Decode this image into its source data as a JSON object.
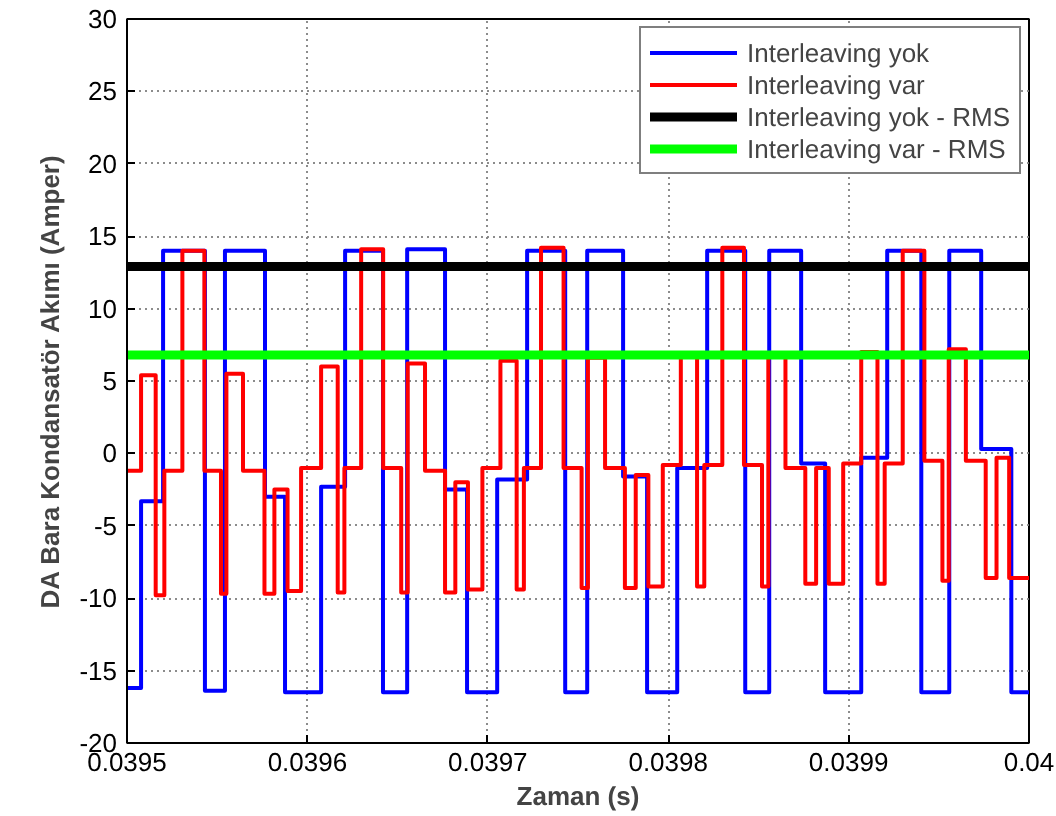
{
  "chart_data": {
    "type": "step",
    "xlabel": "Zaman (s)",
    "ylabel": "DA Bara Kondansatör Akımı (Amper)",
    "xlim": [
      0.0395,
      0.04
    ],
    "ylim": [
      -20,
      30
    ],
    "xticks": [
      0.0395,
      0.0396,
      0.0397,
      0.0398,
      0.0399,
      0.04
    ],
    "yticks": [
      -20,
      -15,
      -10,
      -5,
      0,
      5,
      10,
      15,
      20,
      25,
      30
    ],
    "grid": true,
    "legend": "top right",
    "series": [
      {
        "name": "Interleaving yok",
        "color": "#0000ff",
        "x": [
          0.0395,
          0.0395078,
          0.03952,
          0.0395432,
          0.0395543,
          0.0395765,
          0.0395876,
          0.0396076,
          0.0396209,
          0.0396419,
          0.0396553,
          0.0396763,
          0.0396885,
          0.0397052,
          0.0397218,
          0.0397429,
          0.0397551,
          0.039775,
          0.0397883,
          0.039805,
          0.0398216,
          0.0398427,
          0.039856,
          0.0398737,
          0.039887,
          0.039907,
          0.0399214,
          0.0399403,
          0.0399558,
          0.0399735,
          0.0399902,
          0.04
        ],
        "values": [
          -16.2,
          -3.3,
          14,
          -16.4,
          14,
          -3,
          -16.5,
          -2.3,
          14,
          -16.5,
          14.1,
          -2.5,
          -16.5,
          -1.8,
          14,
          -16.5,
          14,
          -1.6,
          -16.5,
          -1,
          14,
          -16.5,
          14,
          -0.7,
          -16.5,
          -0.3,
          14,
          -16.5,
          14,
          0.3,
          -16.5,
          -16.5
        ]
      },
      {
        "name": "Interleaving var",
        "color": "#ff0000",
        "x": [
          0.0395,
          0.0395078,
          0.0395159,
          0.0395207,
          0.0395307,
          0.0395429,
          0.0395521,
          0.0395551,
          0.0395643,
          0.0395762,
          0.0395817,
          0.039589,
          0.0395965,
          0.0396076,
          0.0396168,
          0.0396205,
          0.0396298,
          0.039642,
          0.039652,
          0.0396556,
          0.0396652,
          0.0396763,
          0.039682,
          0.039689,
          0.039697,
          0.039707,
          0.039716,
          0.03972,
          0.0397295,
          0.039742,
          0.039752,
          0.0397555,
          0.039765,
          0.039776,
          0.039782,
          0.039789,
          0.039797,
          0.039807,
          0.039816,
          0.03982,
          0.03983,
          0.039842,
          0.039852,
          0.0398555,
          0.039865,
          0.039876,
          0.039882,
          0.039889,
          0.039897,
          0.039907,
          0.039916,
          0.03992,
          0.03993,
          0.039942,
          0.039952,
          0.0399555,
          0.039965,
          0.039976,
          0.039982,
          0.039989,
          0.04
        ],
        "values": [
          -1.2,
          5.4,
          -9.8,
          -1.2,
          14,
          -1.2,
          -9.7,
          5.5,
          -1.2,
          -9.7,
          -2.5,
          -9.5,
          -1,
          6,
          -9.6,
          -1,
          14.1,
          -1,
          -9.6,
          6.2,
          -1.2,
          -9.6,
          -2,
          -9.4,
          -1,
          6.4,
          -9.4,
          -1,
          14.2,
          -1,
          -9.3,
          6.6,
          -1,
          -9.3,
          -1.5,
          -9.2,
          -0.8,
          6.8,
          -9.2,
          -0.8,
          14.2,
          -0.8,
          -9.2,
          6.9,
          -1,
          -9,
          -1,
          -9,
          -0.7,
          7,
          -9,
          -0.7,
          14,
          -0.5,
          -8.8,
          7.2,
          -0.5,
          -8.6,
          -0.3,
          -8.6,
          -8.6
        ]
      },
      {
        "name": "Interleaving yok - RMS",
        "type": "line",
        "color": "#000000",
        "x": [
          0.0395,
          0.04
        ],
        "values": [
          12.9,
          12.9
        ]
      },
      {
        "name": "Interleaving var - RMS",
        "type": "line",
        "color": "#00ff00",
        "x": [
          0.0395,
          0.04
        ],
        "values": [
          6.8,
          6.8
        ]
      }
    ]
  }
}
